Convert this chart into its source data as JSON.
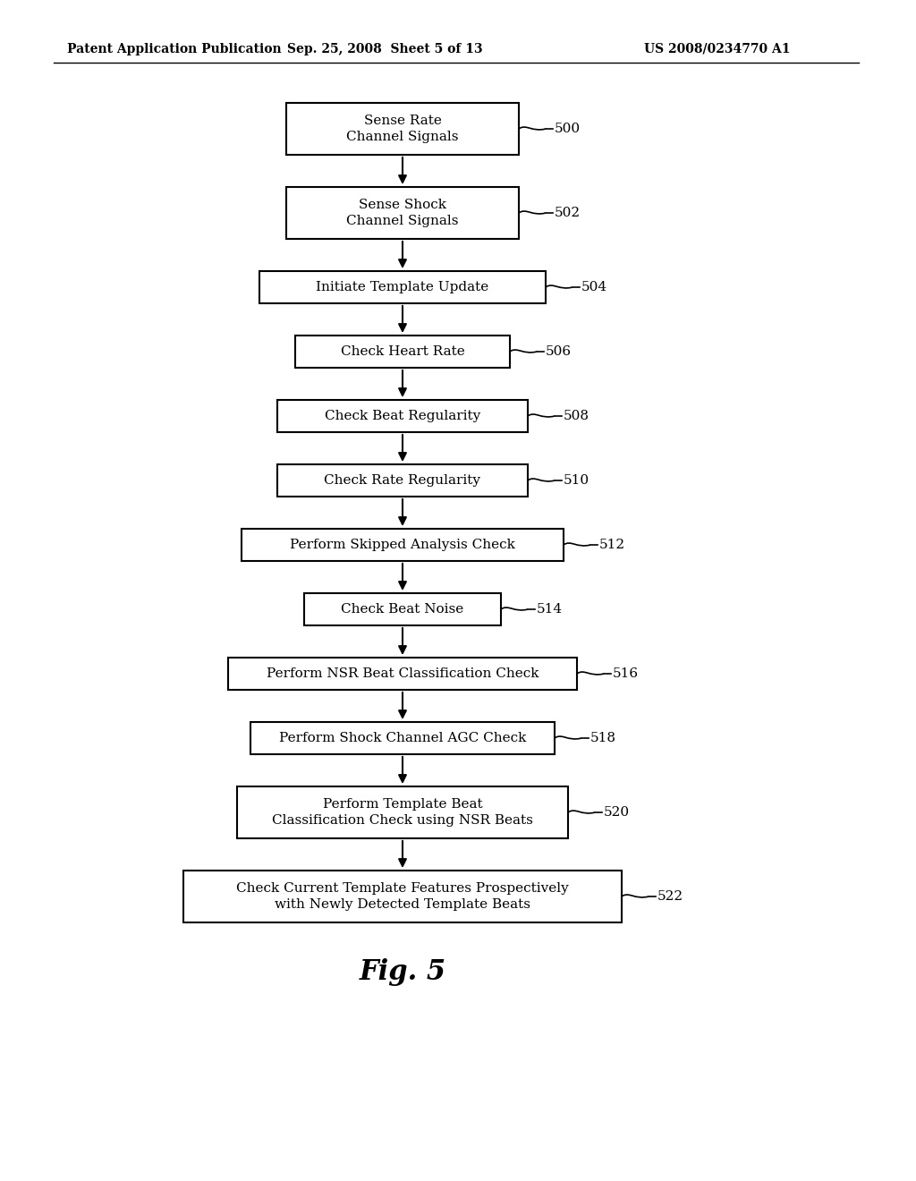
{
  "title": "Fig. 5",
  "header_left": "Patent Application Publication",
  "header_mid": "Sep. 25, 2008  Sheet 5 of 13",
  "header_right": "US 2008/0234770 A1",
  "background_color": "#ffffff",
  "boxes": [
    {
      "id": 0,
      "label": "Sense Rate\nChannel Signals",
      "tag": "500",
      "two_line": true
    },
    {
      "id": 1,
      "label": "Sense Shock\nChannel Signals",
      "tag": "502",
      "two_line": true
    },
    {
      "id": 2,
      "label": "Initiate Template Update",
      "tag": "504",
      "two_line": false
    },
    {
      "id": 3,
      "label": "Check Heart Rate",
      "tag": "506",
      "two_line": false
    },
    {
      "id": 4,
      "label": "Check Beat Regularity",
      "tag": "508",
      "two_line": false
    },
    {
      "id": 5,
      "label": "Check Rate Regularity",
      "tag": "510",
      "two_line": false
    },
    {
      "id": 6,
      "label": "Perform Skipped Analysis Check",
      "tag": "512",
      "two_line": false
    },
    {
      "id": 7,
      "label": "Check Beat Noise",
      "tag": "514",
      "two_line": false
    },
    {
      "id": 8,
      "label": "Perform NSR Beat Classification Check",
      "tag": "516",
      "two_line": false
    },
    {
      "id": 9,
      "label": "Perform Shock Channel AGC Check",
      "tag": "518",
      "two_line": false
    },
    {
      "id": 10,
      "label": "Perform Template Beat\nClassification Check using NSR Beats",
      "tag": "520",
      "two_line": true
    },
    {
      "id": 11,
      "label": "Check Current Template Features Prospectively\nwith Newly Detected Template Beats",
      "tag": "522",
      "two_line": true
    }
  ],
  "arrow_color": "#000000",
  "box_edge_color": "#000000",
  "box_face_color": "#ffffff",
  "text_color": "#000000"
}
